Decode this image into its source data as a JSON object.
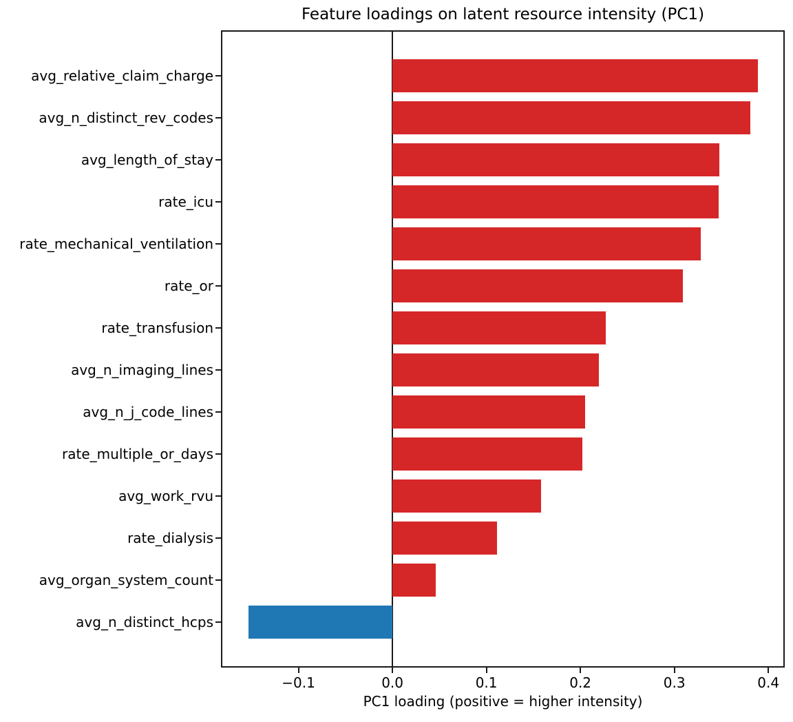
{
  "chart_data": {
    "type": "bar",
    "orientation": "horizontal",
    "title": "Feature loadings on latent resource intensity (PC1)",
    "xlabel": "PC1 loading (positive = higher intensity)",
    "ylabel": "",
    "categories": [
      "avg_relative_claim_charge",
      "avg_n_distinct_rev_codes",
      "avg_length_of_stay",
      "rate_icu",
      "rate_mechanical_ventilation",
      "rate_or",
      "rate_transfusion",
      "avg_n_imaging_lines",
      "avg_n_j_code_lines",
      "rate_multiple_or_days",
      "avg_work_rvu",
      "rate_dialysis",
      "avg_organ_system_count",
      "avg_n_distinct_hcps"
    ],
    "values": [
      0.389,
      0.381,
      0.348,
      0.347,
      0.328,
      0.309,
      0.227,
      0.22,
      0.205,
      0.202,
      0.158,
      0.111,
      0.046,
      -0.153
    ],
    "xlim": [
      -0.181,
      0.416
    ],
    "xticks": [
      -0.1,
      0.0,
      0.1,
      0.2,
      0.3,
      0.4
    ],
    "xtick_labels": [
      "−0.1",
      "0.0",
      "0.1",
      "0.2",
      "0.3",
      "0.4"
    ],
    "positive_color": "#d62728",
    "negative_color": "#1f77b4",
    "spine_color": "#1a1a1a",
    "grid": false,
    "zero_line": true,
    "legend": null
  }
}
